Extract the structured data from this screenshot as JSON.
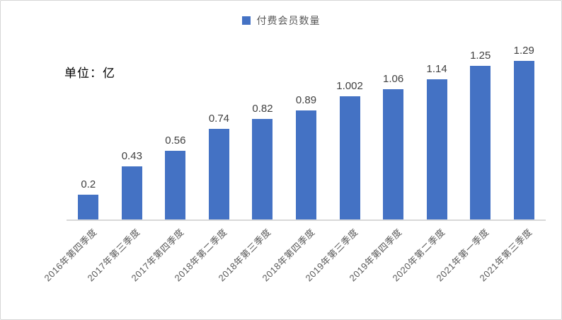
{
  "window": {
    "background_color": "#ffffff",
    "border_color": "#d6d6d6"
  },
  "legend": {
    "label": "付费会员数量",
    "marker_color": "#4472C4",
    "position": "top-center"
  },
  "unit_label": "单位：亿",
  "chart_data": {
    "type": "bar",
    "title": "付费会员数量",
    "categories": [
      "2016年第四季度",
      "2017年第三季度",
      "2017年第四季度",
      "2018年第二季度",
      "2018年第三季度",
      "2018年第四季度",
      "2019年第三季度",
      "2019年第四季度",
      "2020年第二季度",
      "2021年第一季度",
      "2021年第三季度"
    ],
    "values": [
      0.2,
      0.43,
      0.56,
      0.74,
      0.82,
      0.89,
      1.002,
      1.06,
      1.14,
      1.25,
      1.29
    ],
    "value_labels": [
      "0.2",
      "0.43",
      "0.56",
      "0.74",
      "0.82",
      "0.89",
      "1.002",
      "1.06",
      "1.14",
      "1.25",
      "1.29"
    ],
    "bar_color": "#4472C4",
    "axis_line_color": "#D9D9D9",
    "value_label_color": "#404040",
    "axis_label_color": "#595959",
    "xlabel": "",
    "ylabel": "",
    "ylim": [
      0,
      1.4
    ],
    "grid": false,
    "legend_position": "top-center",
    "data_labels": true,
    "x_label_rotation_deg": 45
  }
}
